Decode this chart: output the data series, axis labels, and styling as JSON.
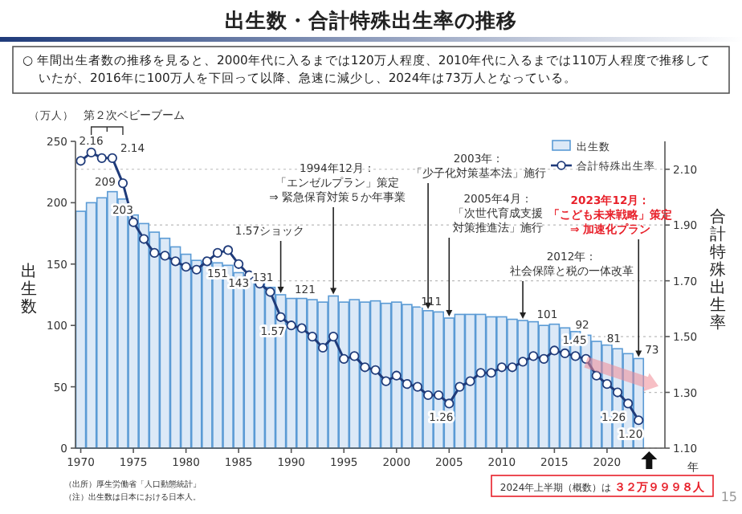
{
  "chart_data": {
    "type": "bar",
    "title": "出生数・合計特殊出生率の推移",
    "subtitle": "○ 年間出生者数の推移を見ると、2000年代に入るまでは120万人程度、2010年代に入るまでは110万人程度で推移していたが、2016年に100万人を下回って以降、急速に減少し、2024年は73万人となっている。",
    "xlabel": "年",
    "ylabel": "出生数",
    "y2label": "合計特殊出生率",
    "x": [
      1970,
      1971,
      1972,
      1973,
      1974,
      1975,
      1976,
      1977,
      1978,
      1979,
      1980,
      1981,
      1982,
      1983,
      1984,
      1985,
      1986,
      1987,
      1988,
      1989,
      1990,
      1991,
      1992,
      1993,
      1994,
      1995,
      1996,
      1997,
      1998,
      1999,
      2000,
      2001,
      2002,
      2003,
      2004,
      2005,
      2006,
      2007,
      2008,
      2009,
      2010,
      2011,
      2012,
      2013,
      2014,
      2015,
      2016,
      2017,
      2018,
      2019,
      2020,
      2021,
      2022,
      2023
    ],
    "xlim": [
      1969.5,
      2025.5
    ],
    "xticks": [
      1970,
      1975,
      1980,
      1985,
      1990,
      1995,
      2000,
      2005,
      2010,
      2015,
      2020
    ],
    "ylim": [
      0,
      250
    ],
    "yticks": [
      0,
      50,
      100,
      150,
      200,
      250
    ],
    "y2lim": [
      1.1,
      2.2
    ],
    "y2ticks": [
      {
        "value": 1.1,
        "label": "1.10"
      },
      {
        "value": 1.3,
        "label": "1.30"
      },
      {
        "value": 1.5,
        "label": "1.50"
      },
      {
        "value": 1.7,
        "label": "1.70"
      },
      {
        "value": 1.9,
        "label": "1.90"
      },
      {
        "value": 2.1,
        "label": "2.10"
      }
    ],
    "grid": "y",
    "legend": "top right",
    "series": [
      {
        "name": "出生数",
        "color": "#dce9f7",
        "values": [
          193,
          200,
          204,
          209,
          203,
          190,
          183,
          176,
          171,
          164,
          158,
          153,
          152,
          151,
          149,
          143,
          138,
          135,
          131,
          125,
          122,
          122,
          121,
          119,
          124,
          119,
          121,
          119,
          120,
          118,
          119,
          117,
          115,
          112,
          111,
          106,
          109,
          109,
          109,
          107,
          107,
          105,
          104,
          103,
          100,
          101,
          98,
          95,
          92,
          87,
          84,
          81,
          77,
          73
        ],
        "value_labels": [
          null,
          null,
          null,
          "209",
          "203",
          null,
          null,
          null,
          null,
          null,
          null,
          null,
          null,
          "151",
          null,
          "143",
          null,
          null,
          "131",
          null,
          null,
          null,
          "121",
          null,
          null,
          null,
          null,
          null,
          null,
          null,
          null,
          null,
          null,
          null,
          "111",
          null,
          null,
          null,
          null,
          null,
          null,
          null,
          null,
          null,
          null,
          "101",
          null,
          null,
          "92",
          null,
          null,
          "81",
          null,
          "73"
        ]
      },
      {
        "name": "合計特殊出生率",
        "type": "line",
        "axis": "y2",
        "color": "#1f3b7a",
        "marker": "circle",
        "values": [
          2.13,
          2.16,
          2.14,
          2.14,
          2.05,
          1.91,
          1.85,
          1.8,
          1.79,
          1.77,
          1.75,
          1.74,
          1.77,
          1.8,
          1.81,
          1.76,
          1.72,
          1.69,
          1.66,
          1.57,
          1.54,
          1.53,
          1.5,
          1.46,
          1.5,
          1.42,
          1.43,
          1.39,
          1.38,
          1.34,
          1.36,
          1.33,
          1.32,
          1.29,
          1.29,
          1.26,
          1.32,
          1.34,
          1.37,
          1.37,
          1.39,
          1.39,
          1.41,
          1.43,
          1.42,
          1.45,
          1.44,
          1.43,
          1.42,
          1.36,
          1.33,
          1.3,
          1.26,
          1.2
        ],
        "value_labels": [
          null,
          "2.16",
          null,
          "2.14",
          null,
          null,
          null,
          null,
          null,
          null,
          null,
          null,
          null,
          null,
          null,
          null,
          null,
          null,
          null,
          "1.57",
          null,
          null,
          null,
          null,
          null,
          null,
          null,
          null,
          null,
          null,
          null,
          null,
          null,
          null,
          null,
          "1.26",
          null,
          null,
          null,
          null,
          null,
          null,
          null,
          null,
          null,
          "1.45",
          null,
          null,
          null,
          null,
          null,
          null,
          "1.26",
          "1.20"
        ]
      }
    ],
    "annotations": [
      "（万人）",
      "第２次ベビーブーム",
      {
        "text": "1.57ショック",
        "x": 1989,
        "y": 125
      },
      {
        "text": "1994年12月：「エンゼルプラン」策定⇒ 緊急保育対策５か年事業",
        "x": 1994,
        "y": 124
      },
      {
        "text": "2003年：「少子化対策基本法」施行",
        "x": 2003,
        "y": 112
      },
      {
        "text": "2005年4月：「次世代育成支援対策推進法」施行",
        "x": 2005,
        "y": 106
      },
      {
        "text": "2012年：社会保障と税の一体改革",
        "x": 2012,
        "y": 104
      },
      {
        "text": "2023年12月：「こども未来戦略」策定⇒ 加速化プラン",
        "x": 2023,
        "y": 73
      },
      "2024年上半期（概数）は",
      "３２万９９９８人",
      "（出所）厚生労働省「人口動態統計」",
      "（注）出生数は日本における日本人。",
      "15"
    ]
  }
}
